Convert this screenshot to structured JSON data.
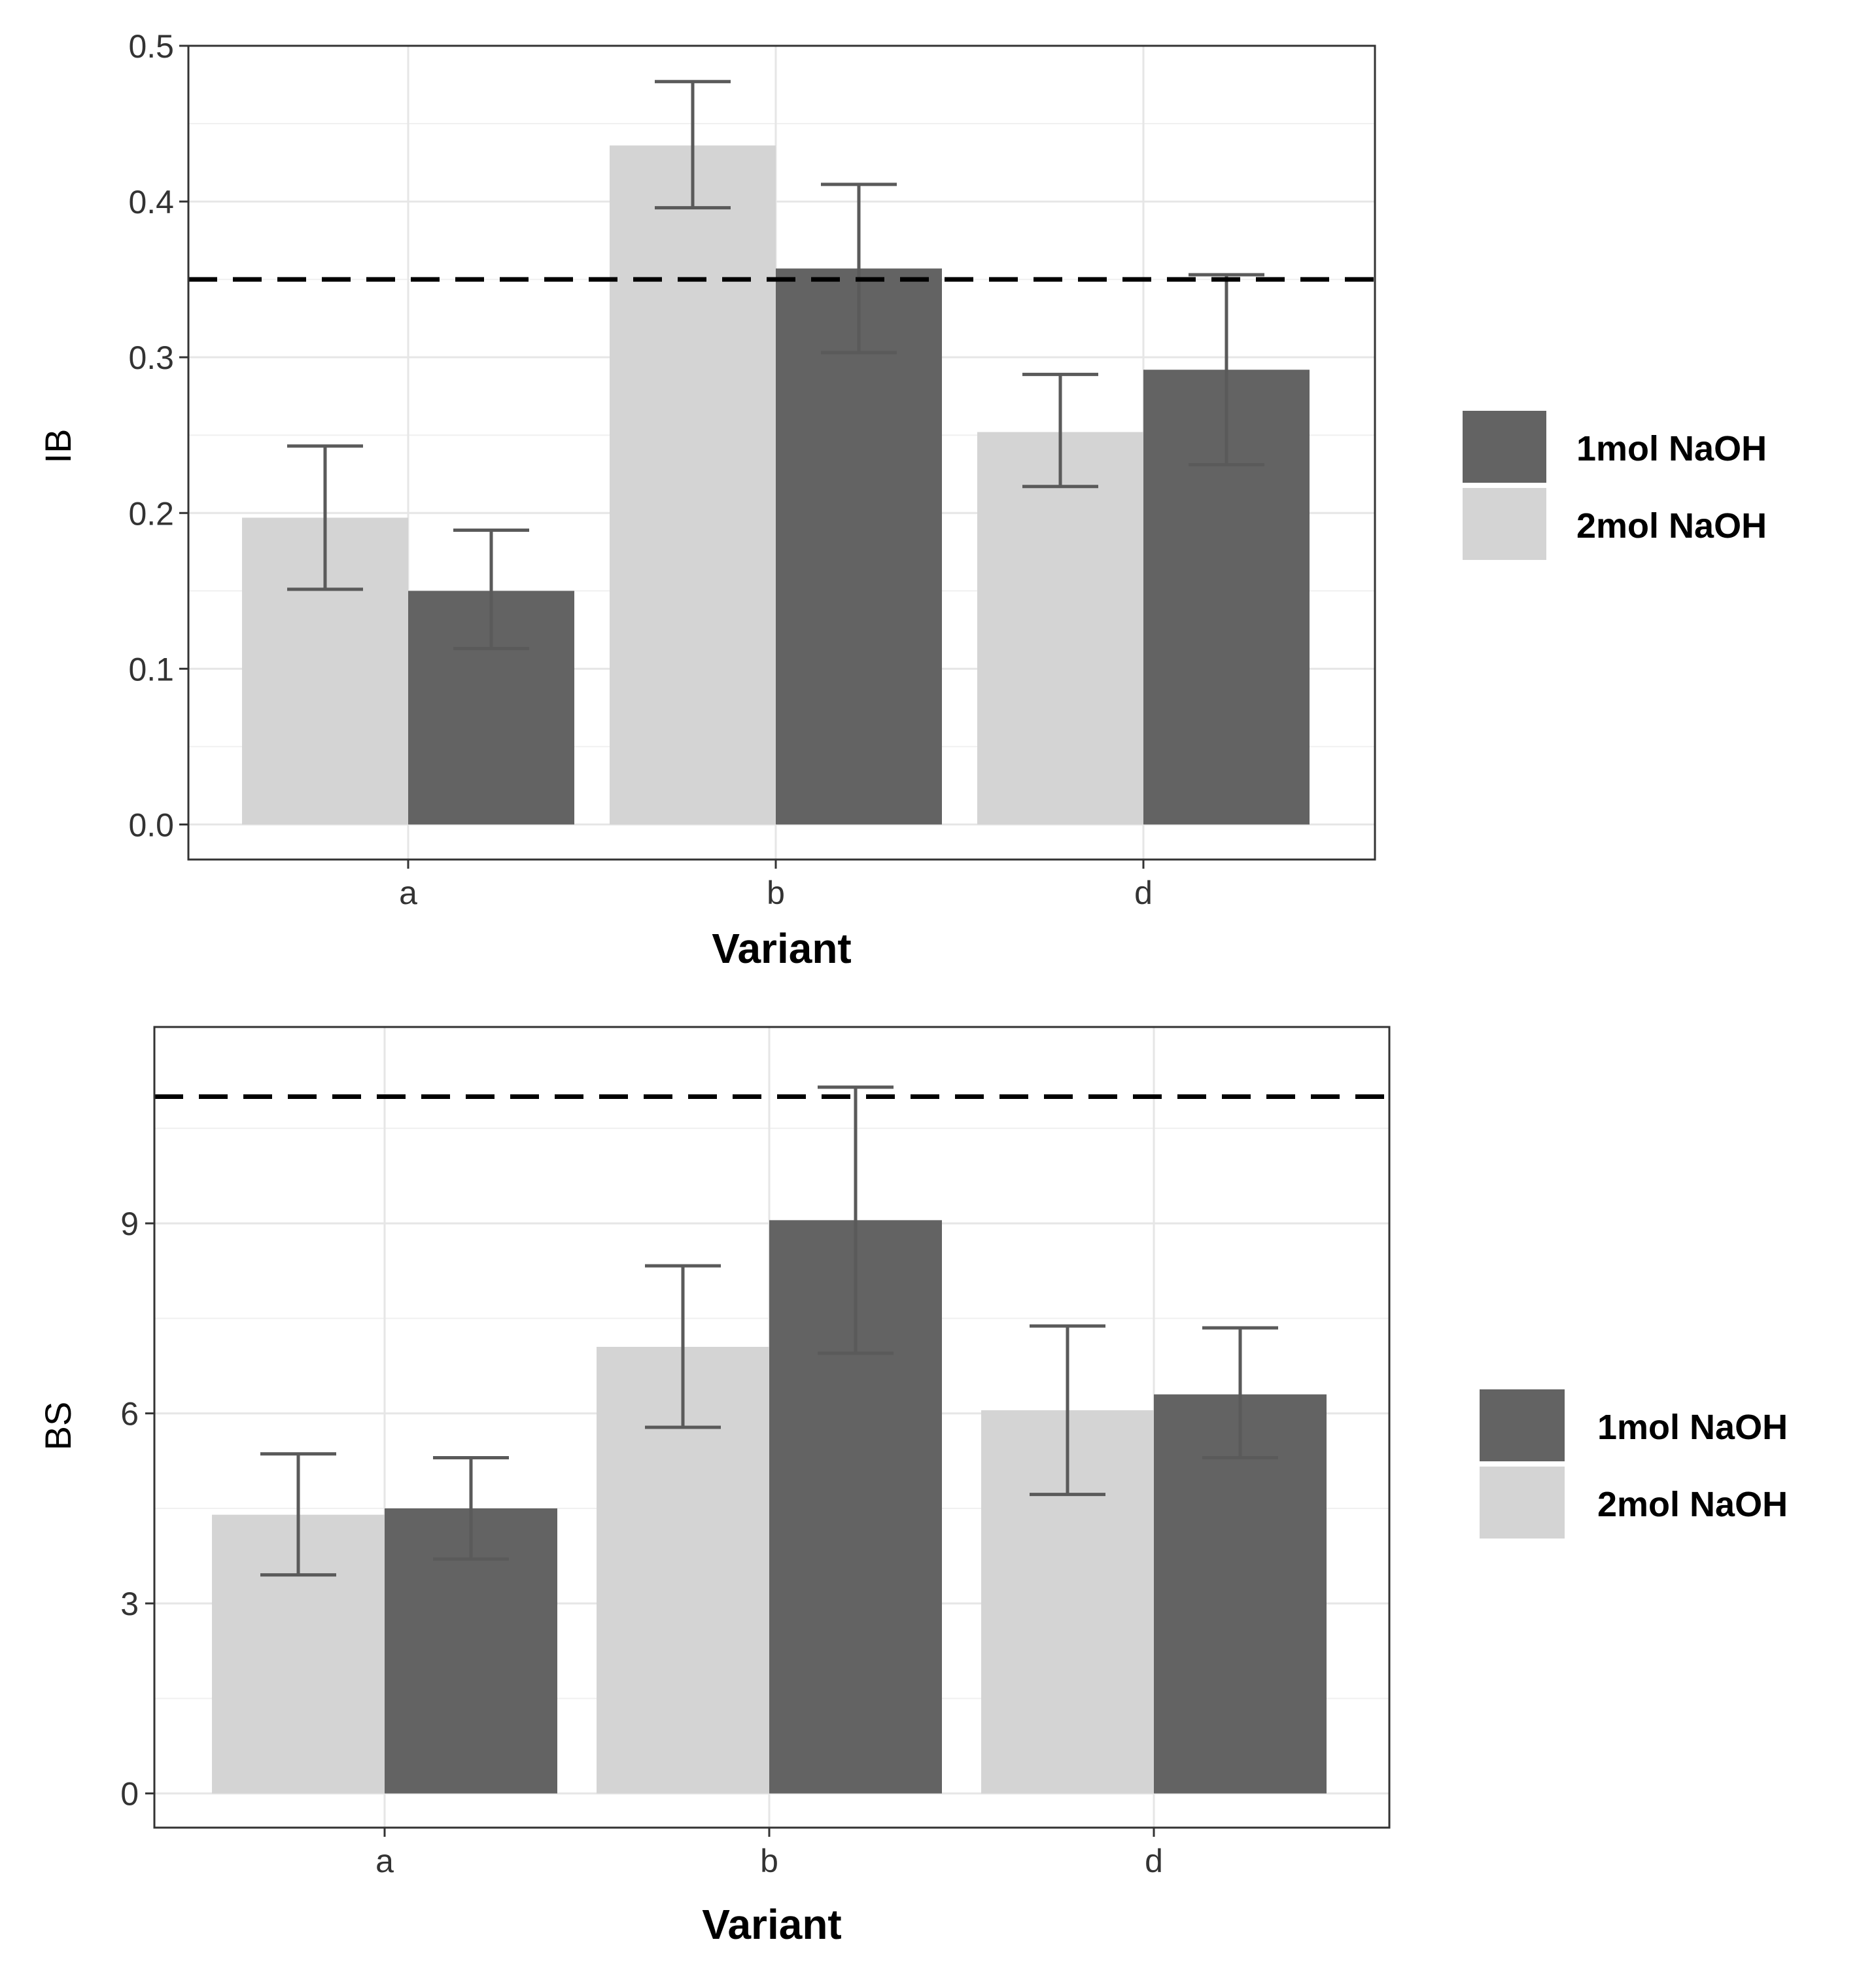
{
  "chart_data": [
    {
      "type": "bar",
      "categories": [
        "a",
        "b",
        "d"
      ],
      "xlabel": "Variant",
      "ylabel": "IB",
      "ylim": [
        -0.0225,
        0.5
      ],
      "yticks": [
        "0.0",
        "0.1",
        "0.2",
        "0.3",
        "0.4",
        "0.5"
      ],
      "ytick_values": [
        0,
        0.1,
        0.2,
        0.3,
        0.4,
        0.5
      ],
      "reference_line": 0.35,
      "grid": true,
      "legend_position": "right",
      "series": [
        {
          "name": "2mol NaOH",
          "color": "#d4d4d4",
          "values": [
            0.197,
            0.436,
            0.252
          ],
          "err_low": [
            0.151,
            0.396,
            0.217
          ],
          "err_high": [
            0.243,
            0.477,
            0.289
          ]
        },
        {
          "name": "1mol NaOH",
          "color": "#636363",
          "values": [
            0.15,
            0.357,
            0.292
          ],
          "err_low": [
            0.113,
            0.303,
            0.231
          ],
          "err_high": [
            0.189,
            0.411,
            0.353
          ]
        }
      ],
      "legend": [
        "1mol NaOH",
        "2mol NaOH"
      ]
    },
    {
      "type": "bar",
      "categories": [
        "a",
        "b",
        "d"
      ],
      "xlabel": "Variant",
      "ylabel": "BS",
      "ylim": [
        -0.54,
        12.1
      ],
      "yticks": [
        "0",
        "3",
        "6",
        "9"
      ],
      "ytick_values": [
        0,
        3,
        6,
        9
      ],
      "reference_line": 11,
      "grid": true,
      "legend_position": "right",
      "series": [
        {
          "name": "2mol NaOH",
          "color": "#d4d4d4",
          "values": [
            4.4,
            7.05,
            6.05
          ],
          "err_low": [
            3.45,
            5.78,
            4.72
          ],
          "err_high": [
            5.36,
            8.33,
            7.38
          ]
        },
        {
          "name": "1mol NaOH",
          "color": "#636363",
          "values": [
            4.5,
            9.05,
            6.3
          ],
          "err_low": [
            3.7,
            6.95,
            5.3
          ],
          "err_high": [
            5.3,
            11.15,
            7.35
          ]
        }
      ],
      "legend": [
        "1mol NaOH",
        "2mol NaOH"
      ]
    }
  ]
}
